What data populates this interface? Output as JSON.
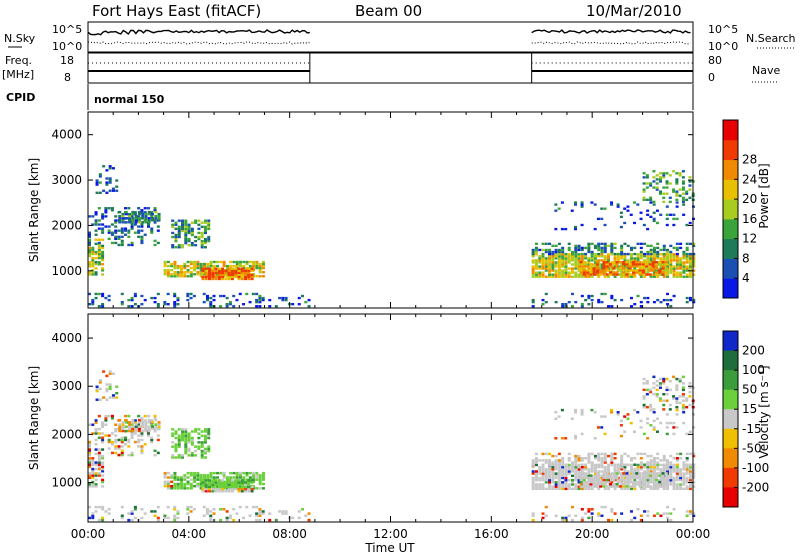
{
  "header": {
    "station": "Fort Hays East (fitACF)",
    "beam": "Beam 00",
    "date": "10/Mar/2010"
  },
  "status_panels": {
    "nsky_label": "N.Sky",
    "nsky_ticks": [
      "10^5",
      "10^0"
    ],
    "nsearch_label": "N.Search",
    "nsearch_ticks": [
      "10^5",
      "10^0"
    ],
    "freq_label": "Freq.",
    "freq_unit": "[MHz]",
    "freq_ticks": [
      "18",
      "8"
    ],
    "nave_label": "Nave",
    "nave_ticks": [
      "80",
      "0"
    ],
    "cpid_label": "CPID",
    "cpid_value": "normal 150"
  },
  "chart_data": [
    {
      "type": "heatmap",
      "name": "power",
      "ylabel": "Slant Range [km]",
      "xlabel": "",
      "xlim": [
        "00:00",
        "24:00"
      ],
      "ylim": [
        180,
        4500
      ],
      "y_ticks": [
        "1000",
        "2000",
        "3000",
        "4000"
      ],
      "colorbar": {
        "label": "Power [dB]",
        "ticks": [
          "4",
          "8",
          "12",
          "16",
          "20",
          "24",
          "28"
        ],
        "levels": [
          0,
          4,
          8,
          12,
          16,
          20,
          24,
          28,
          32
        ],
        "colors": [
          "#0a18e6",
          "#1a4fb4",
          "#1f7a5a",
          "#3aa33a",
          "#a8cc20",
          "#e8c000",
          "#f08a00",
          "#f03a00",
          "#e60000"
        ]
      },
      "data_gaps_utc": [
        [
          "08:50",
          "17:40"
        ]
      ]
    },
    {
      "type": "heatmap",
      "name": "velocity",
      "ylabel": "Slant Range [km]",
      "xlabel": "Time UT",
      "xlim": [
        "00:00",
        "24:00"
      ],
      "ylim": [
        180,
        4500
      ],
      "x_ticks": [
        "00:00",
        "04:00",
        "08:00",
        "12:00",
        "16:00",
        "20:00",
        "00:00"
      ],
      "y_ticks": [
        "1000",
        "2000",
        "3000",
        "4000"
      ],
      "colorbar": {
        "label": "Velocity [m s⁻¹]",
        "ticks": [
          "200",
          "100",
          "50",
          "15",
          "-15",
          "-50",
          "-100",
          "-200"
        ],
        "colors": [
          "#1028c8",
          "#1e6e3c",
          "#3a9c3a",
          "#6cd03c",
          "#c8c8c8",
          "#f0c000",
          "#f08a00",
          "#f03a00",
          "#e60000"
        ]
      },
      "ground_scatter_color": "#c8c8c8",
      "data_gaps_utc": [
        [
          "08:50",
          "17:40"
        ]
      ]
    }
  ]
}
